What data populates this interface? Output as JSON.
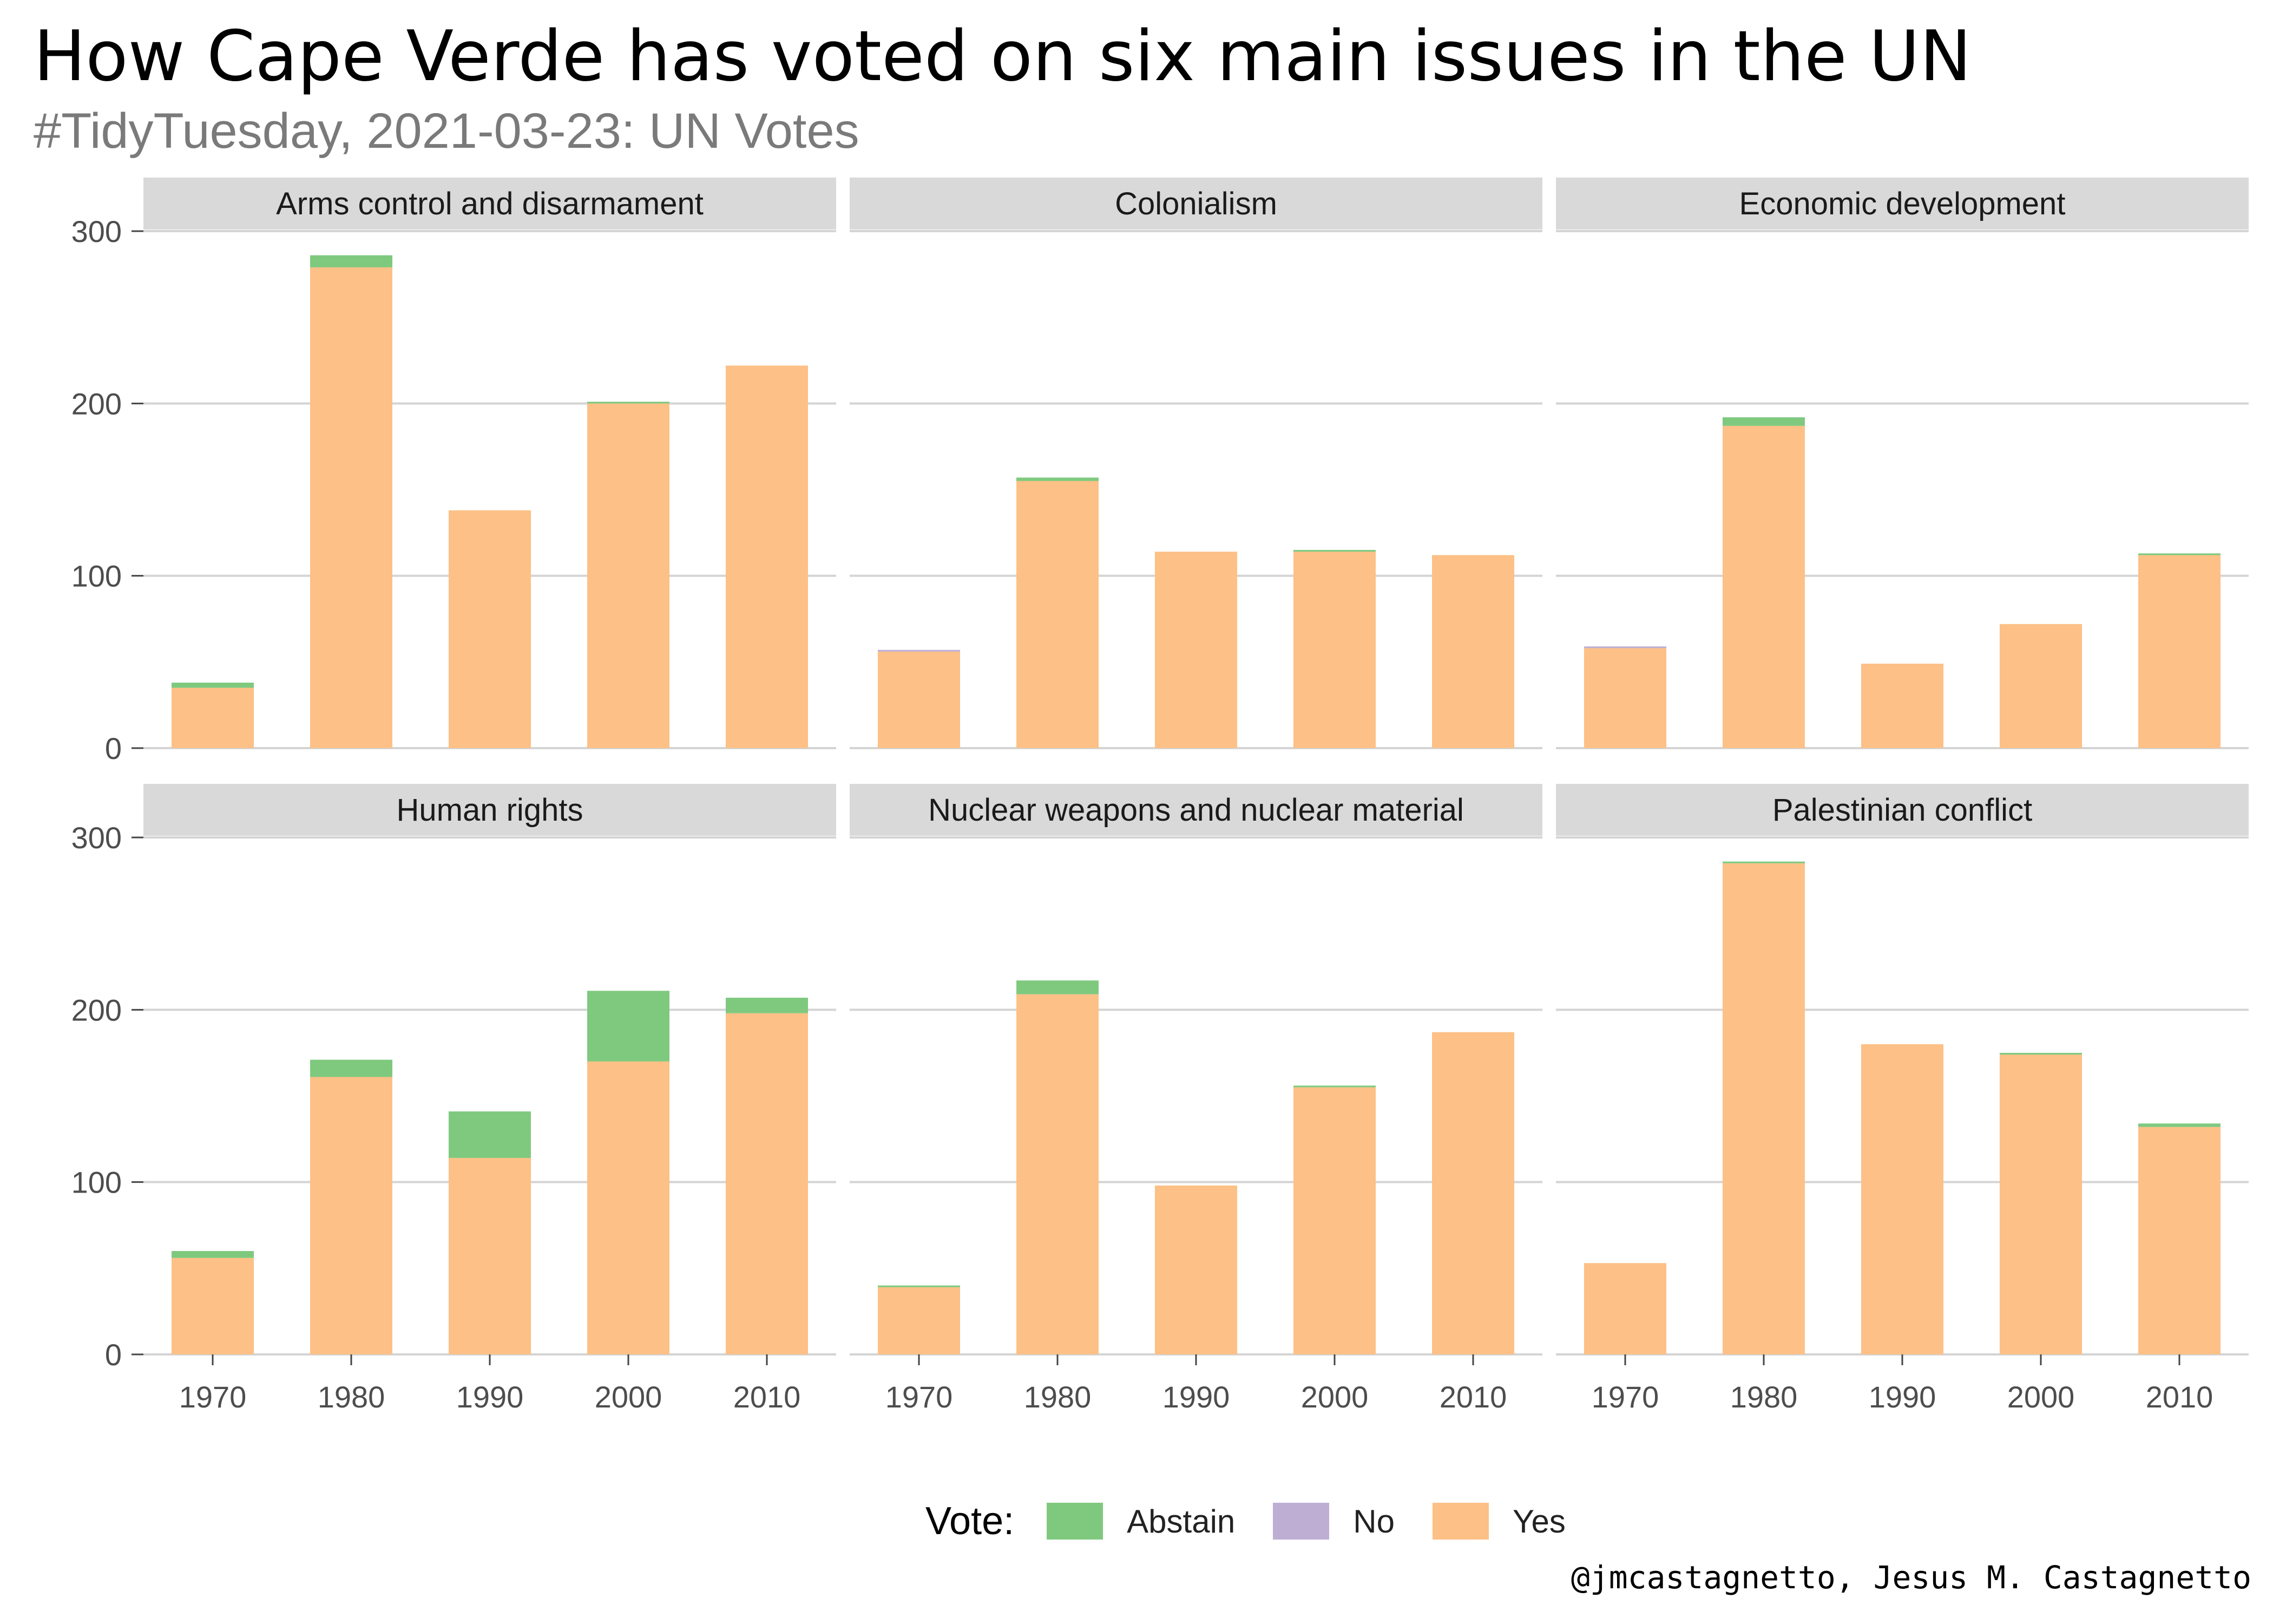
{
  "title": "How Cape Verde has voted on six main issues in the UN",
  "subtitle": "#TidyTuesday, 2021-03-23: UN Votes",
  "caption": "@jmcastagnetto, Jesus M. Castagnetto",
  "colors": {
    "Abstain": "#7fc97f",
    "No": "#beaed4",
    "Yes": "#fdc086",
    "strip": "#d9d9d9",
    "grid": "#d4d4d4",
    "axis_text": "#4d4d4d"
  },
  "legend": {
    "title": "Vote:",
    "items": [
      {
        "label": "Abstain",
        "color": "#7fc97f"
      },
      {
        "label": "No",
        "color": "#beaed4"
      },
      {
        "label": "Yes",
        "color": "#fdc086"
      }
    ]
  },
  "chart_data": {
    "type": "bar",
    "stacked": true,
    "facet_layout": "2x3",
    "categories": [
      "1970",
      "1980",
      "1990",
      "2000",
      "2010"
    ],
    "y_ticks": [
      0,
      100,
      200,
      300
    ],
    "ylim": [
      0,
      300
    ],
    "series_names": [
      "Yes",
      "No",
      "Abstain"
    ],
    "panels": [
      {
        "title": "Arms control and disarmament",
        "series": [
          {
            "name": "Yes",
            "values": [
              35,
              279,
              138,
              200,
              222
            ]
          },
          {
            "name": "No",
            "values": [
              0,
              0,
              0,
              0,
              0
            ]
          },
          {
            "name": "Abstain",
            "values": [
              3,
              7,
              0,
              1,
              0
            ]
          }
        ]
      },
      {
        "title": "Colonialism",
        "series": [
          {
            "name": "Yes",
            "values": [
              56,
              155,
              114,
              114,
              112
            ]
          },
          {
            "name": "No",
            "values": [
              1,
              0,
              0,
              0,
              0
            ]
          },
          {
            "name": "Abstain",
            "values": [
              0,
              2,
              0,
              1,
              0
            ]
          }
        ]
      },
      {
        "title": "Economic development",
        "series": [
          {
            "name": "Yes",
            "values": [
              58,
              187,
              49,
              72,
              112
            ]
          },
          {
            "name": "No",
            "values": [
              1,
              0,
              0,
              0,
              0
            ]
          },
          {
            "name": "Abstain",
            "values": [
              0,
              5,
              0,
              0,
              1
            ]
          }
        ]
      },
      {
        "title": "Human rights",
        "series": [
          {
            "name": "Yes",
            "values": [
              56,
              161,
              114,
              170,
              198
            ]
          },
          {
            "name": "No",
            "values": [
              0,
              0,
              0,
              0,
              0
            ]
          },
          {
            "name": "Abstain",
            "values": [
              4,
              10,
              27,
              41,
              9
            ]
          }
        ]
      },
      {
        "title": "Nuclear weapons and nuclear material",
        "series": [
          {
            "name": "Yes",
            "values": [
              39,
              209,
              98,
              155,
              187
            ]
          },
          {
            "name": "No",
            "values": [
              0,
              0,
              0,
              0,
              0
            ]
          },
          {
            "name": "Abstain",
            "values": [
              1,
              8,
              0,
              1,
              0
            ]
          }
        ]
      },
      {
        "title": "Palestinian conflict",
        "series": [
          {
            "name": "Yes",
            "values": [
              53,
              285,
              180,
              174,
              132
            ]
          },
          {
            "name": "No",
            "values": [
              0,
              0,
              0,
              0,
              0
            ]
          },
          {
            "name": "Abstain",
            "values": [
              0,
              1,
              0,
              1,
              2
            ]
          }
        ]
      }
    ]
  }
}
